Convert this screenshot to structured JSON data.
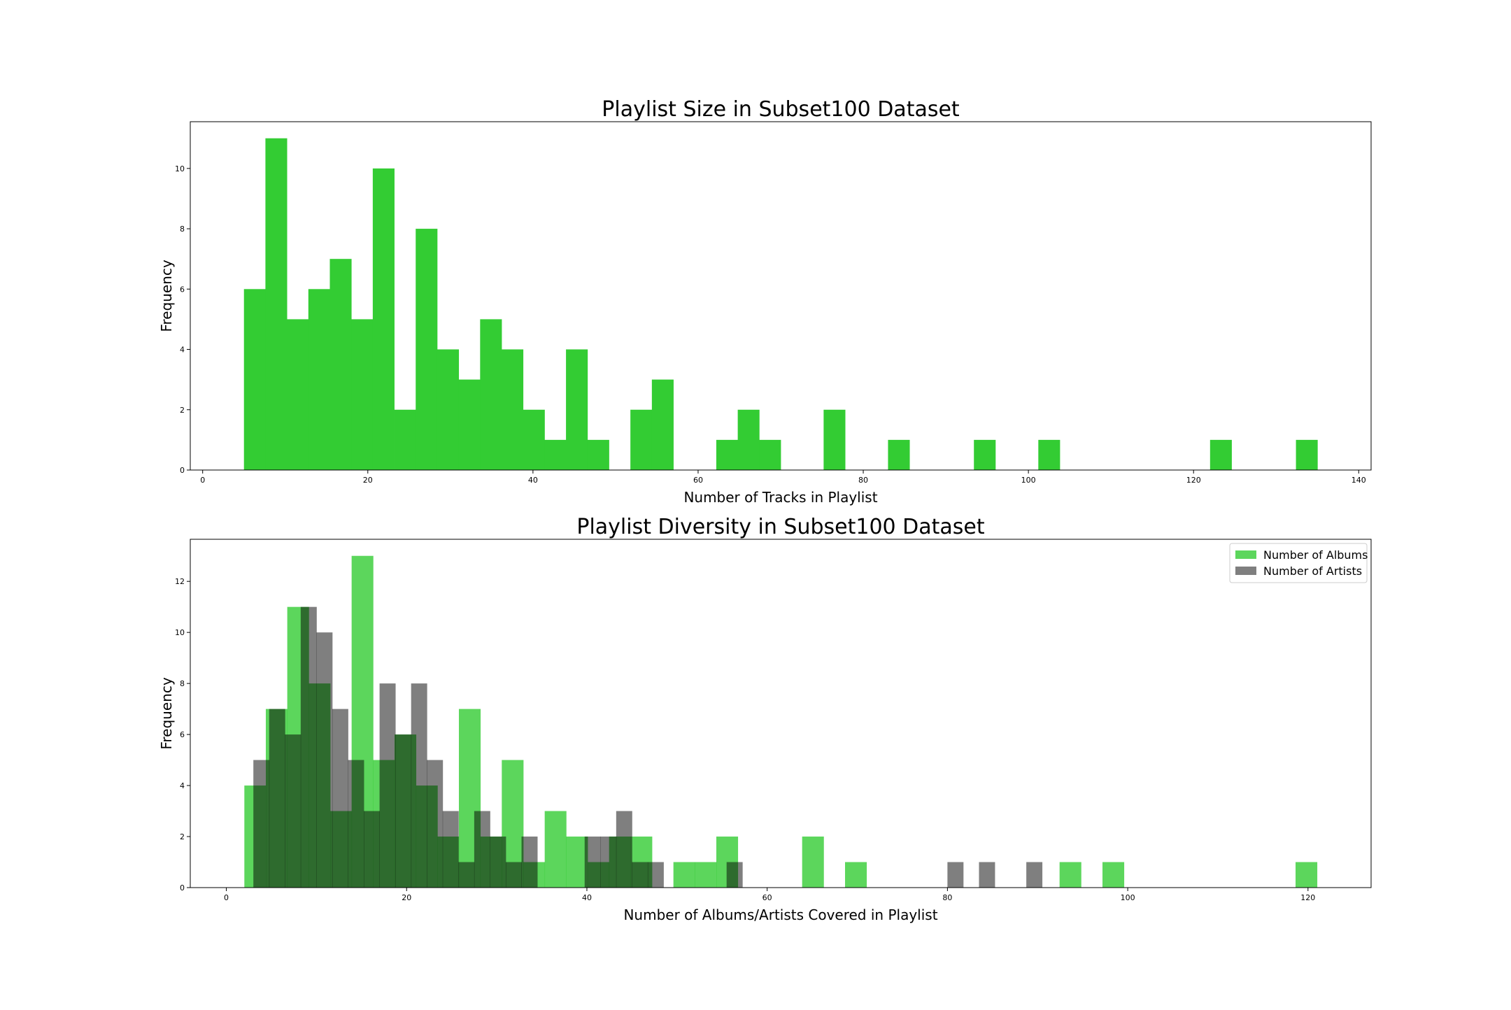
{
  "chart_data": [
    {
      "type": "bar",
      "title": "Playlist Size in Subset100 Dataset",
      "xlabel": "Number of Tracks in Playlist",
      "ylabel": "Frequency",
      "xlim": [
        -1.5,
        141.5
      ],
      "ylim": [
        0,
        11.55
      ],
      "xticks": [
        0,
        20,
        40,
        60,
        80,
        100,
        120,
        140
      ],
      "yticks": [
        0,
        2,
        4,
        6,
        8,
        10
      ],
      "grid": false,
      "series": [
        {
          "color": "#33cc33",
          "opacity": 1,
          "bin_width": 2.6,
          "bin_starts": [
            5,
            7.6,
            10.2,
            12.8,
            15.4,
            18,
            20.6,
            23.2,
            25.8,
            28.4,
            31,
            33.6,
            36.2,
            38.8,
            41.4,
            44,
            46.6,
            49.2,
            51.8,
            54.4,
            57,
            59.6,
            62.2,
            64.8,
            67.4,
            70,
            72.6,
            75.2,
            77.8,
            80.4,
            83,
            85.6,
            88.2,
            90.8,
            93.4,
            96,
            98.6,
            101.2,
            103.8,
            106.4,
            109,
            111.6,
            114.2,
            116.8,
            119.4,
            122,
            124.6,
            127.2,
            129.8,
            132.4
          ],
          "values": [
            6,
            11,
            5,
            6,
            7,
            5,
            10,
            2,
            8,
            4,
            3,
            5,
            4,
            2,
            1,
            4,
            1,
            0,
            2,
            3,
            0,
            0,
            1,
            2,
            1,
            0,
            0,
            2,
            0,
            0,
            1,
            0,
            0,
            0,
            1,
            0,
            0,
            1,
            0,
            0,
            0,
            0,
            0,
            0,
            0,
            1,
            0,
            0,
            0,
            1
          ]
        }
      ]
    },
    {
      "type": "bar",
      "title": "Playlist Diversity in Subset100 Dataset",
      "xlabel": "Number of Albums/Artists Covered in Playlist",
      "ylabel": "Frequency",
      "xlim": [
        -4,
        127
      ],
      "ylim": [
        0,
        13.65
      ],
      "xticks": [
        0,
        20,
        40,
        60,
        80,
        100,
        120
      ],
      "yticks": [
        0,
        2,
        4,
        6,
        8,
        10,
        12
      ],
      "grid": false,
      "legend": "top-right",
      "series": [
        {
          "name": "Number of Albums",
          "color": "#33cc33",
          "opacity": 0.8,
          "bin_width": 2.38,
          "bin_starts": [
            2,
            4.38,
            6.76,
            9.14,
            11.52,
            13.9,
            16.28,
            18.66,
            21.04,
            23.42,
            25.8,
            28.18,
            30.56,
            32.94,
            35.32,
            37.7,
            40.08,
            42.46,
            44.84,
            47.22,
            49.6,
            51.98,
            54.36,
            56.74,
            59.12,
            61.5,
            63.88,
            66.26,
            68.64,
            71.02,
            73.4,
            75.78,
            78.16,
            80.54,
            82.92,
            85.3,
            87.68,
            90.06,
            92.44,
            94.82,
            97.2,
            99.58,
            101.96,
            104.34,
            106.72,
            109.1,
            111.48,
            113.86,
            116.24,
            118.62
          ],
          "values": [
            4,
            7,
            11,
            8,
            3,
            13,
            5,
            6,
            4,
            2,
            7,
            2,
            5,
            1,
            3,
            2,
            1,
            2,
            2,
            0,
            1,
            1,
            2,
            0,
            0,
            0,
            2,
            0,
            1,
            0,
            0,
            0,
            0,
            0,
            0,
            0,
            0,
            0,
            1,
            0,
            1,
            0,
            0,
            0,
            0,
            0,
            0,
            0,
            0,
            1
          ]
        },
        {
          "name": "Number of Artists",
          "color": "#000000",
          "opacity": 0.5,
          "bin_width": 1.75,
          "bin_starts": [
            3,
            4.75,
            6.5,
            8.25,
            10,
            11.75,
            13.5,
            15.25,
            17,
            18.75,
            20.5,
            22.25,
            24,
            25.75,
            27.5,
            29.25,
            31,
            32.75,
            34.5,
            36.25,
            38,
            39.75,
            41.5,
            43.25,
            45,
            46.75,
            48.5,
            50.25,
            52,
            53.75,
            55.5,
            57.25,
            59,
            60.75,
            62.5,
            64.25,
            66,
            67.75,
            69.5,
            71.25,
            73,
            74.75,
            76.5,
            78.25,
            80,
            81.75,
            83.5,
            85.25,
            87,
            88.75
          ],
          "values": [
            5,
            7,
            6,
            11,
            10,
            7,
            5,
            3,
            8,
            6,
            8,
            5,
            3,
            1,
            3,
            2,
            1,
            2,
            0,
            0,
            0,
            2,
            2,
            3,
            1,
            1,
            0,
            0,
            0,
            0,
            1,
            0,
            0,
            0,
            0,
            0,
            0,
            0,
            0,
            0,
            0,
            0,
            0,
            0,
            1,
            0,
            1,
            0,
            0,
            1
          ]
        }
      ]
    }
  ]
}
